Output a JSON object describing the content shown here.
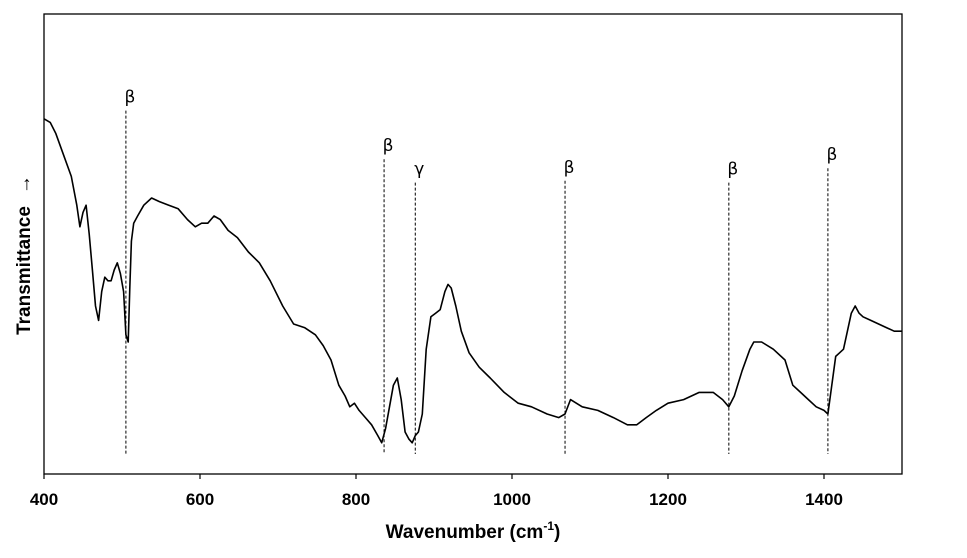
{
  "chart_data": {
    "type": "line",
    "title": "",
    "xlabel": "Wavenumber (cm",
    "xlabel_sup": "-1",
    "xlabel_close": ")",
    "ylabel": "Transmittance",
    "ylabel_arrow": "→",
    "xlim": [
      400,
      1500
    ],
    "ylim": [
      0,
      100
    ],
    "x_ticks": [
      400,
      600,
      800,
      1000,
      1200,
      1400
    ],
    "y_ticks_shown": false,
    "grid": false,
    "legend": "none",
    "line_color": "#000000",
    "series": [
      {
        "x": [
          400,
          408,
          415,
          425,
          435,
          442,
          446,
          450,
          454,
          458,
          462,
          466,
          470,
          474,
          478,
          482,
          486,
          490,
          494,
          498,
          502,
          505,
          508,
          510,
          512,
          515,
          520,
          528,
          538,
          548,
          560,
          572,
          584,
          594,
          602,
          610,
          618,
          626,
          636,
          648,
          662,
          676,
          690,
          706,
          720,
          734,
          748,
          758,
          768,
          778,
          786,
          792,
          798,
          804,
          812,
          820,
          828,
          833,
          838,
          843,
          848,
          853,
          858,
          863,
          868,
          872,
          876,
          880,
          885,
          890,
          896,
          902,
          908,
          914,
          918,
          922,
          928,
          935,
          945,
          958,
          972,
          990,
          1008,
          1025,
          1045,
          1060,
          1068,
          1075,
          1090,
          1110,
          1130,
          1148,
          1160,
          1172,
          1185,
          1200,
          1220,
          1240,
          1258,
          1270,
          1278,
          1285,
          1295,
          1305,
          1310,
          1320,
          1335,
          1350,
          1360,
          1370,
          1380,
          1390,
          1400,
          1405,
          1410,
          1415,
          1420,
          1425,
          1430,
          1435,
          1440,
          1445,
          1450,
          1460,
          1470,
          1480,
          1490,
          1500
        ],
        "y": [
          92,
          91,
          88,
          82,
          76,
          68,
          62,
          66,
          68,
          60,
          50,
          40,
          36,
          44,
          48,
          47,
          47,
          50,
          52,
          49,
          44,
          32,
          30,
          45,
          58,
          63,
          65,
          68,
          70,
          69,
          68,
          67,
          64,
          62,
          63,
          63,
          65,
          64,
          61,
          59,
          55,
          52,
          47,
          40,
          35,
          34,
          32,
          29,
          25,
          18,
          15,
          12,
          13,
          11,
          9,
          7,
          4,
          2,
          6,
          12,
          18,
          20,
          14,
          5,
          3,
          2,
          4,
          5,
          10,
          28,
          37,
          38,
          39,
          44,
          46,
          45,
          40,
          33,
          27,
          23,
          20,
          16,
          13,
          12,
          10,
          9,
          10,
          14,
          12,
          11,
          9,
          7,
          7,
          9,
          11,
          13,
          14,
          16,
          16,
          14,
          12,
          15,
          22,
          28,
          30,
          30,
          28,
          25,
          18,
          16,
          14,
          12,
          11,
          10,
          18,
          26,
          27,
          28,
          33,
          38,
          40,
          38,
          37,
          36,
          35,
          34,
          33,
          33
        ]
      }
    ],
    "annotations": [
      {
        "label": "β",
        "x": 505,
        "label_y": 96.5
      },
      {
        "label": "β",
        "x": 836,
        "label_y": 83
      },
      {
        "label": "γ",
        "x": 876,
        "label_y": 76.5
      },
      {
        "label": "β",
        "x": 1068,
        "label_y": 77
      },
      {
        "label": "β",
        "x": 1278,
        "label_y": 76.5
      },
      {
        "label": "β",
        "x": 1405,
        "label_y": 80.5
      }
    ]
  }
}
